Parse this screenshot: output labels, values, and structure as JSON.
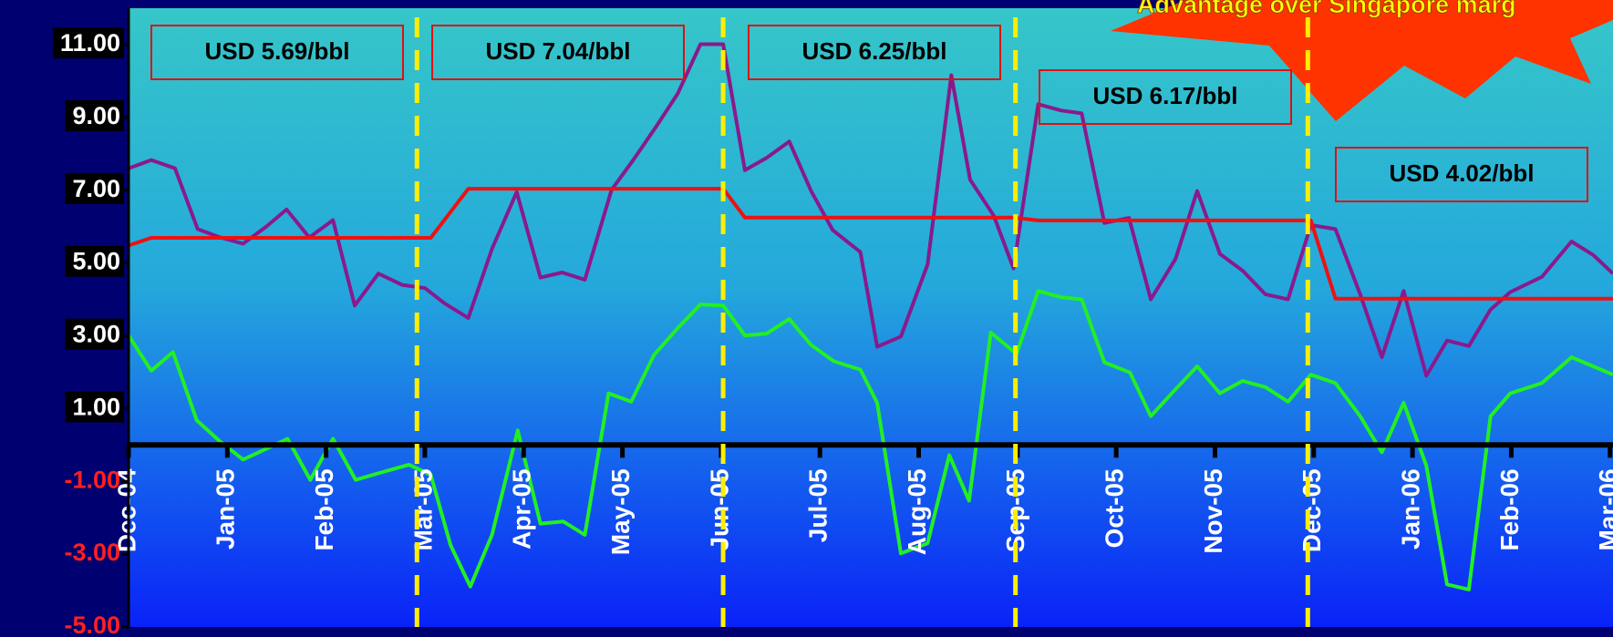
{
  "chart_data": {
    "type": "line",
    "xlim": [
      0,
      15.03
    ],
    "ylim": [
      -5,
      12
    ],
    "xticks": [
      {
        "value": 0,
        "label": "Dec-04"
      },
      {
        "value": 1,
        "label": "Jan-05"
      },
      {
        "value": 2,
        "label": "Feb-05"
      },
      {
        "value": 3,
        "label": "Mar-05"
      },
      {
        "value": 4,
        "label": "Apr-05"
      },
      {
        "value": 5,
        "label": "May-05"
      },
      {
        "value": 6,
        "label": "Jun-05"
      },
      {
        "value": 7,
        "label": "Jul-05"
      },
      {
        "value": 8,
        "label": "Aug-05"
      },
      {
        "value": 9,
        "label": "Sep-05"
      },
      {
        "value": 10,
        "label": "Oct-05"
      },
      {
        "value": 11,
        "label": "Nov-05"
      },
      {
        "value": 12,
        "label": "Dec-05"
      },
      {
        "value": 13,
        "label": "Jan-06"
      },
      {
        "value": 14,
        "label": "Feb-06"
      },
      {
        "value": 15,
        "label": "Mar-06"
      }
    ],
    "yticks": [
      {
        "value": 11,
        "label": "11.00"
      },
      {
        "value": 9,
        "label": "9.00"
      },
      {
        "value": 7,
        "label": "7.00"
      },
      {
        "value": 5,
        "label": "5.00"
      },
      {
        "value": 3,
        "label": "3.00"
      },
      {
        "value": 1,
        "label": "1.00"
      },
      {
        "value": -1,
        "label": "-1.00"
      },
      {
        "value": -3,
        "label": "-3.00"
      },
      {
        "value": -5,
        "label": "-5.00"
      }
    ],
    "period_lines": [
      2.92,
      6.02,
      8.98,
      11.94
    ],
    "annotations": [
      "USD 5.69/bbl",
      "USD 7.04/bbl",
      "USD 6.25/bbl",
      "USD 6.17/bbl",
      "USD 4.02/bbl"
    ],
    "callout": "Advantage over Singapore marg",
    "series": [
      {
        "color": "#8a1a8c",
        "x": [
          0,
          0.23,
          0.47,
          0.7,
          0.93,
          1.16,
          1.39,
          1.6,
          1.83,
          2.07,
          2.29,
          2.53,
          2.77,
          3,
          3.2,
          3.44,
          3.68,
          3.93,
          4.17,
          4.39,
          4.62,
          4.89,
          5.11,
          5.34,
          5.56,
          5.79,
          6.02,
          6.24,
          6.46,
          6.69,
          6.91,
          7.13,
          7.41,
          7.58,
          7.82,
          8.09,
          8.33,
          8.52,
          8.76,
          8.96,
          9.21,
          9.44,
          9.65,
          9.88,
          10.13,
          10.35,
          10.6,
          10.82,
          11.05,
          11.28,
          11.51,
          11.74,
          11.97,
          12.22,
          12.47,
          12.69,
          12.91,
          13.14,
          13.35,
          13.57,
          13.79,
          13.99,
          14.31,
          14.61,
          14.83,
          15.03
        ],
        "values": [
          7.6,
          7.83,
          7.6,
          5.93,
          5.7,
          5.53,
          5.99,
          6.47,
          5.7,
          6.18,
          3.83,
          4.71,
          4.4,
          4.31,
          3.89,
          3.49,
          5.39,
          6.95,
          4.6,
          4.74,
          4.54,
          7.01,
          7.83,
          8.74,
          9.65,
          11.01,
          11.01,
          7.55,
          7.89,
          8.34,
          6.98,
          5.9,
          5.3,
          2.7,
          2.98,
          4.96,
          10.16,
          7.29,
          6.3,
          4.85,
          9.36,
          9.19,
          9.11,
          6.1,
          6.24,
          4,
          5.11,
          6.98,
          5.25,
          4.79,
          4.14,
          4,
          6.04,
          5.93,
          4.14,
          2.41,
          4.23,
          1.9,
          2.87,
          2.72,
          3.72,
          4.2,
          4.62,
          5.59,
          5.22,
          4.71
        ]
      },
      {
        "color": "#22f022",
        "x": [
          0,
          0.23,
          0.45,
          0.69,
          0.92,
          1.16,
          1.39,
          1.61,
          1.84,
          2.07,
          2.3,
          2.54,
          2.84,
          3.06,
          3.26,
          3.46,
          3.68,
          3.94,
          4.17,
          4.4,
          4.62,
          4.86,
          5.09,
          5.32,
          5.56,
          5.79,
          6.02,
          6.24,
          6.46,
          6.69,
          6.91,
          7.14,
          7.41,
          7.58,
          7.82,
          8.09,
          8.31,
          8.51,
          8.73,
          8.99,
          9.21,
          9.44,
          9.65,
          9.88,
          10.14,
          10.35,
          10.6,
          10.82,
          11.05,
          11.28,
          11.51,
          11.74,
          11.97,
          12.22,
          12.47,
          12.69,
          12.91,
          13.14,
          13.35,
          13.57,
          13.79,
          13.99,
          14.31,
          14.61,
          14.83,
          15.03
        ],
        "values": [
          3.01,
          2.04,
          2.55,
          0.68,
          0.11,
          -0.4,
          -0.11,
          0.17,
          -0.96,
          0.17,
          -0.96,
          -0.77,
          -0.54,
          -0.82,
          -2.75,
          -3.89,
          -2.47,
          0.4,
          -2.16,
          -2.1,
          -2.47,
          1.42,
          1.19,
          2.47,
          3.21,
          3.86,
          3.83,
          3.01,
          3.06,
          3.46,
          2.75,
          2.3,
          2.07,
          1.16,
          -2.98,
          -2.7,
          -0.28,
          -1.53,
          3.09,
          2.5,
          4.23,
          4.06,
          4,
          2.27,
          1.99,
          0.79,
          1.53,
          2.16,
          1.42,
          1.76,
          1.59,
          1.19,
          1.93,
          1.7,
          0.79,
          -0.2,
          1.16,
          -0.57,
          -3.83,
          -3.97,
          0.79,
          1.42,
          1.7,
          2.41,
          2.16,
          1.93
        ]
      },
      {
        "color": "#ee1111",
        "x": [
          0,
          0.23,
          3.06,
          3.44,
          6.02,
          6.24,
          8.96,
          9.21,
          11.97,
          12.22,
          15.03
        ],
        "values": [
          5.48,
          5.69,
          5.69,
          7.04,
          7.04,
          6.25,
          6.25,
          6.17,
          6.17,
          4.02,
          4.02
        ]
      }
    ]
  }
}
